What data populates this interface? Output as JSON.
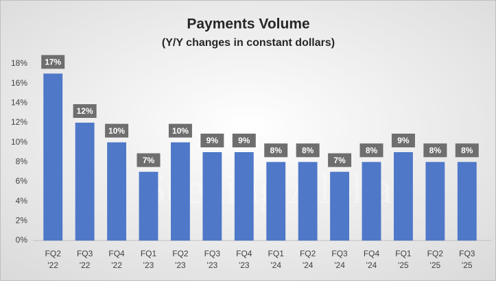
{
  "chart_data": {
    "type": "bar",
    "title": "Payments Volume",
    "subtitle": "(Y/Y changes in constant dollars)",
    "watermark": "Seeking Alpha",
    "categories": [
      "FQ2 '22",
      "FQ3 '22",
      "FQ4 '22",
      "FQ1 '23",
      "FQ2 '23",
      "FQ3 '23",
      "FQ4 '23",
      "FQ1 '24",
      "FQ2 '24",
      "FQ3 '24",
      "FQ4 '24",
      "FQ1 '25",
      "FQ2 '25",
      "FQ3 '25"
    ],
    "values": [
      17,
      12,
      10,
      7,
      10,
      9,
      9,
      8,
      8,
      7,
      8,
      9,
      8,
      8
    ],
    "value_labels": [
      "17%",
      "12%",
      "10%",
      "7%",
      "10%",
      "9%",
      "9%",
      "8%",
      "8%",
      "7%",
      "8%",
      "9%",
      "8%",
      "8%"
    ],
    "color": "#4f78c8",
    "ylim": [
      0,
      18
    ],
    "yticks": [
      {
        "value": 0,
        "label": "0%"
      },
      {
        "value": 2,
        "label": "2%"
      },
      {
        "value": 4,
        "label": "4%"
      },
      {
        "value": 6,
        "label": "6%"
      },
      {
        "value": 8,
        "label": "8%"
      },
      {
        "value": 10,
        "label": "10%"
      },
      {
        "value": 12,
        "label": "12%"
      },
      {
        "value": 14,
        "label": "14%"
      },
      {
        "value": 16,
        "label": "16%"
      },
      {
        "value": 18,
        "label": "18%"
      }
    ],
    "grid": false
  }
}
